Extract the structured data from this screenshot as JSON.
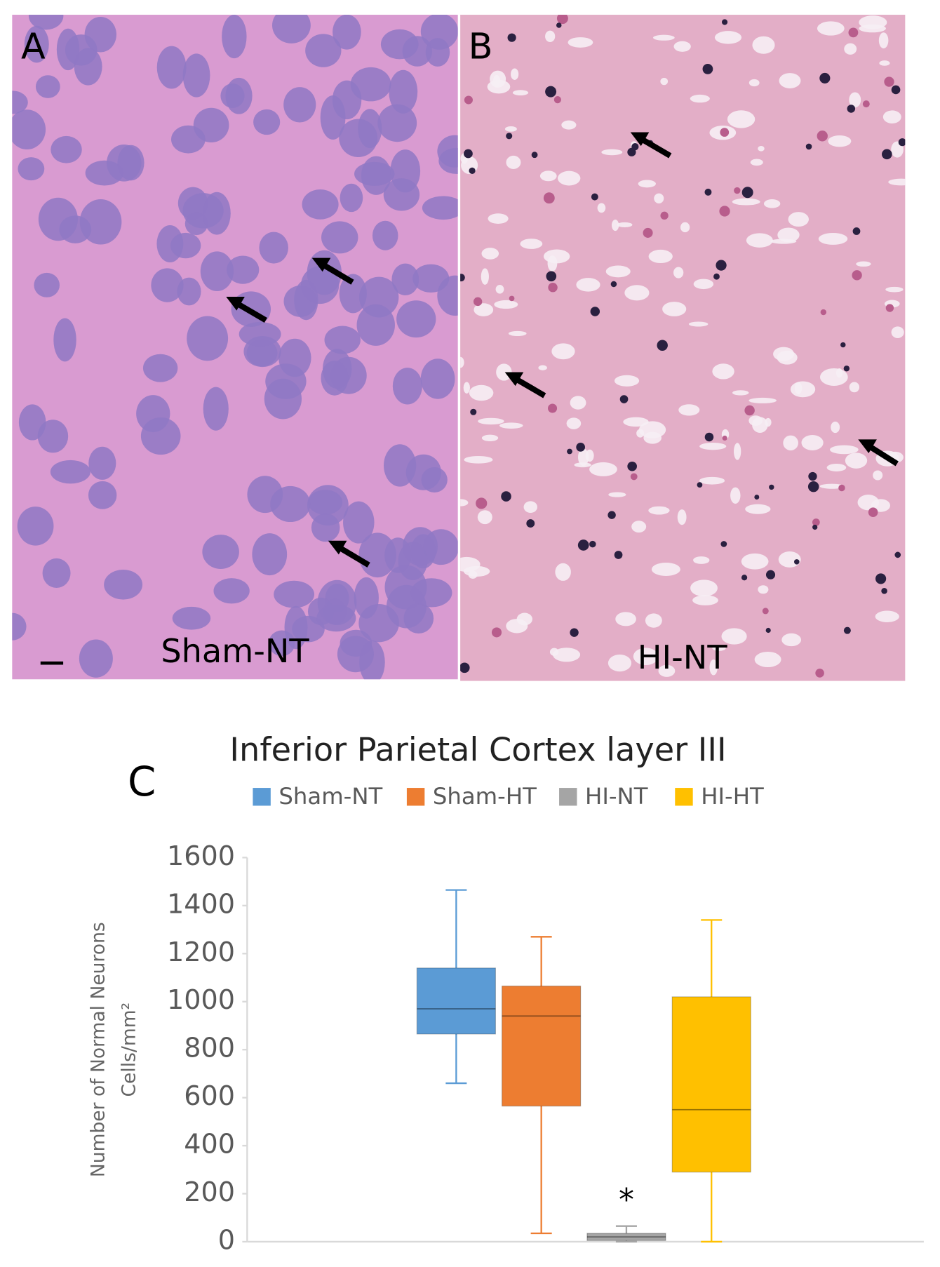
{
  "panels": [
    {
      "label": "A",
      "caption": "Sham-NT"
    },
    {
      "label": "B",
      "caption": "HI-NT"
    }
  ],
  "chart_data": {
    "type": "box",
    "panel_label": "C",
    "title": "Inferior Parietal Cortex layer III",
    "y_label": [
      "Number of Normal Neurons",
      "Cells/mm²"
    ],
    "series": [
      {
        "name": "Sham-NT",
        "color": "#5b9bd5",
        "low": 660,
        "q1": 865,
        "median": 970,
        "q3": 1140,
        "high": 1465
      },
      {
        "name": "Sham-HT",
        "color": "#ed7d31",
        "low": 35,
        "q1": 565,
        "median": 940,
        "q3": 1065,
        "high": 1270
      },
      {
        "name": "HI-NT",
        "color": "#a5a5a5",
        "low": 0,
        "q1": 5,
        "median": 20,
        "q3": 35,
        "high": 65
      },
      {
        "name": "HI-HT",
        "color": "#ffc000",
        "low": 0,
        "q1": 290,
        "median": 550,
        "q3": 1020,
        "high": 1340
      }
    ],
    "annotation": "*",
    "ylim": [
      0,
      1600
    ],
    "yticks": [
      0,
      200,
      400,
      600,
      800,
      1000,
      1200,
      1400,
      1600
    ]
  }
}
